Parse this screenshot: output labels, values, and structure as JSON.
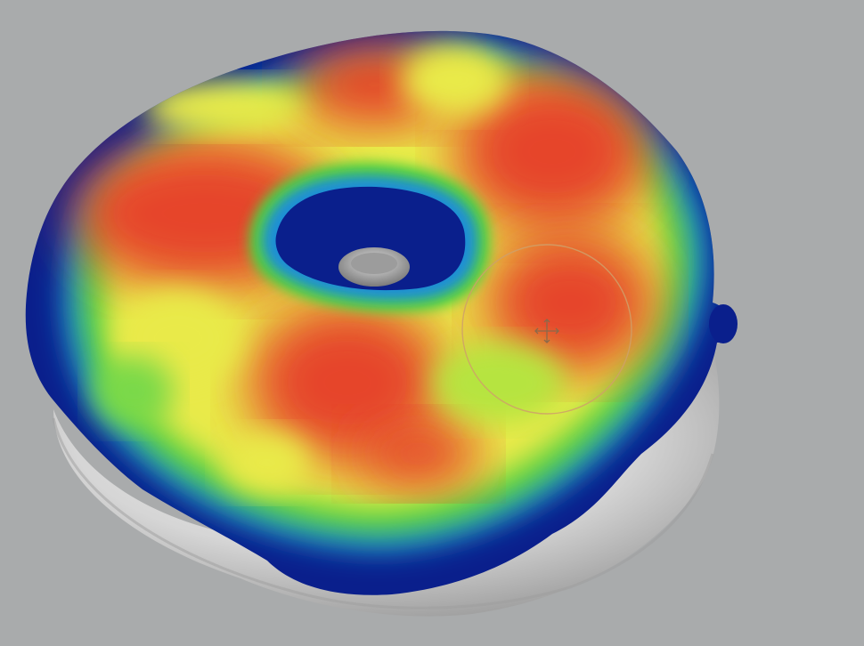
{
  "viewport": {
    "background_color": "#a9abac",
    "heatmap_colors": {
      "low": "#0a1f8c",
      "low_mid": "#1f8fd6",
      "mid": "#52d23c",
      "mid_high": "#e9ea4a",
      "high": "#e6452a"
    },
    "base_mesh_color": "#d8d8d8"
  },
  "brush": {
    "cursor_icon": "move-crosshair-icon",
    "ring_color": "#cfa06a"
  }
}
